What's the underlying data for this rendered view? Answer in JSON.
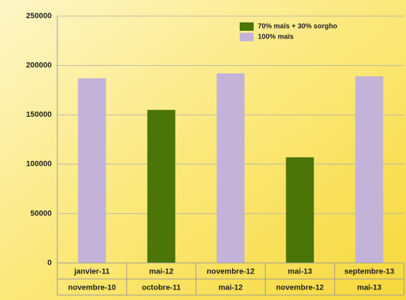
{
  "chart_data": {
    "type": "bar",
    "categories": [
      [
        "janvier-11",
        "novembre-10"
      ],
      [
        "mai-12",
        "octobre-11"
      ],
      [
        "novembre-12",
        "mai-12"
      ],
      [
        "mai-13",
        "novembre-12"
      ],
      [
        "septembre-13",
        "mai-13"
      ]
    ],
    "series": [
      {
        "name": "70% maïs + 30% sorgho",
        "color": "#4b7508",
        "values": [
          null,
          155000,
          null,
          107000,
          null
        ]
      },
      {
        "name": "100% maïs",
        "color": "#c3b3d8",
        "values": [
          187000,
          null,
          192000,
          null,
          189000
        ]
      }
    ],
    "ylim": [
      0,
      250000
    ],
    "yticks": [
      0,
      50000,
      100000,
      150000,
      200000,
      250000
    ],
    "grid": true,
    "legend": "top-right"
  }
}
